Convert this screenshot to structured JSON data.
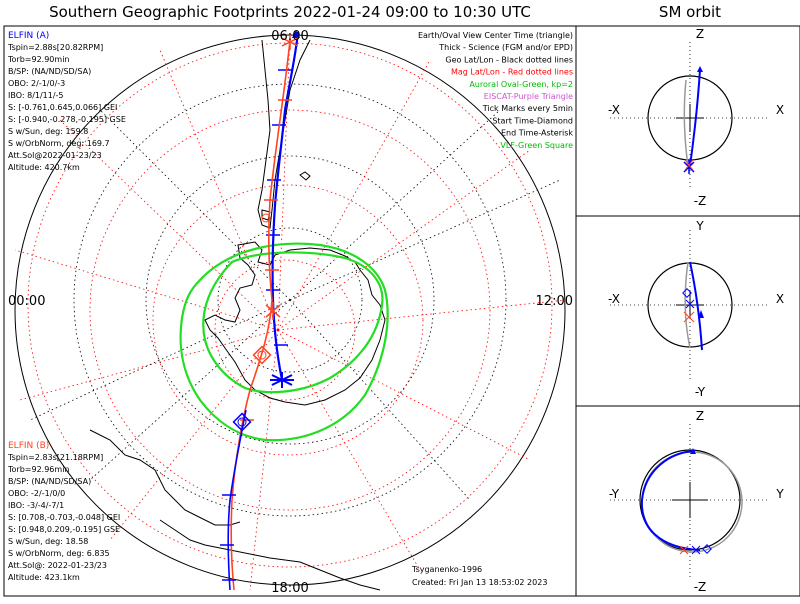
{
  "header": {
    "title": "Southern Geographic Footprints 2022-01-24 09:00 to 10:30 UTC",
    "orbit_title": "SM orbit"
  },
  "map": {
    "time_labels": {
      "top": "06:00",
      "left": "00:00",
      "right": "12:00",
      "bottom": "18:00"
    },
    "legend": [
      {
        "text": "Earth/Oval View Center Time (triangle)",
        "color": "#000000"
      },
      {
        "text": "Thick - Science (FGM and/or EPD)",
        "color": "#000000"
      },
      {
        "text": "Geo Lat/Lon - Black dotted lines",
        "color": "#000000"
      },
      {
        "text": "Mag Lat/Lon - Red dotted lines",
        "color": "#ff0000"
      },
      {
        "text": "Auroral Oval-Green, kp=2",
        "color": "#00bb00"
      },
      {
        "text": "EISCAT-Purple Triangle",
        "color": "#cc55cc"
      },
      {
        "text": "Tick Marks every 5min",
        "color": "#000000"
      },
      {
        "text": "Start Time-Diamond",
        "color": "#000000"
      },
      {
        "text": "End Time-Asterisk",
        "color": "#000000"
      },
      {
        "text": "VLF-Green Square",
        "color": "#00bb00"
      }
    ],
    "elfin_a": {
      "title": "ELFIN (A)",
      "color": "#0000ff",
      "lines": [
        "Tspin=2.88s[20.82RPM]",
        "Torb=92.90min",
        "B/SP: (NA/ND/SD/SA)",
        "OBO: 2/-1/0/-3",
        "IBO: 8/1/11/-5",
        "S: [-0.761,0.645,0.066] GEI",
        "S: [-0.940,-0.278,-0.195] GSE",
        "S w/Sun, deg: 159.8",
        "S w/OrbNorm, deg: 169.7",
        "Att.Sol@2022-01-23/23",
        "Altitude: 420.7km"
      ]
    },
    "elfin_b": {
      "title": "ELFIN (B)",
      "color": "#ff4422",
      "lines": [
        "Tspin=2.83s[21.18RPM]",
        "Torb=92.96min",
        "B/SP: (NA/ND/SD/SA)",
        "OBO: -2/-1/0/0",
        "IBO: -3/-4/-7/1",
        "S: [0.708,-0.703,-0.048] GEI",
        "S: [0.948,0.209,-0.195] GSE",
        "S w/Sun, deg: 18.58",
        "S w/OrbNorm, deg: 6.835",
        "Att.Sol@: 2022-01-23/23",
        "Altitude: 423.1km"
      ]
    },
    "footer": {
      "model": "Tsyganenko-1996",
      "created": "Created: Fri Jan 13 18:53:02 2023"
    }
  },
  "orbit_panels": [
    {
      "name": "orbit-panel-xz",
      "top_axis": "Z",
      "bottom_axis": "-Z",
      "left_axis": "-X",
      "right_axis": "X"
    },
    {
      "name": "orbit-panel-xy",
      "top_axis": "Y",
      "bottom_axis": "-Y",
      "left_axis": "-X",
      "right_axis": "X"
    },
    {
      "name": "orbit-panel-yz",
      "top_axis": "Z",
      "bottom_axis": "-Z",
      "left_axis": "-Y",
      "right_axis": "Y"
    }
  ],
  "colors": {
    "elfin_a": "#0000ff",
    "elfin_b": "#ff4422",
    "geo_grid": "#000000",
    "mag_grid": "#ff0000",
    "auroral_oval": "#00cc00"
  }
}
